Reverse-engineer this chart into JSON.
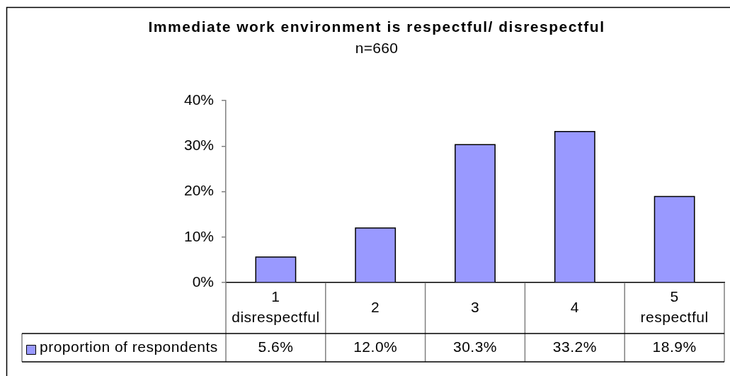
{
  "chart_data": {
    "type": "bar",
    "title": "Immediate work environment is respectful/ disrespectful",
    "subtitle": "n=660",
    "categories": [
      "1\ndisrespectful",
      "2",
      "3",
      "4",
      "5\nrespectful"
    ],
    "series": [
      {
        "name": "proportion of respondents",
        "color": "#9999ff",
        "values": [
          5.6,
          12.0,
          30.3,
          33.2,
          18.9
        ],
        "value_labels": [
          "5.6%",
          "12.0%",
          "30.3%",
          "33.2%",
          "18.9%"
        ]
      }
    ],
    "ylim": [
      0,
      40
    ],
    "yticks": [
      {
        "value": 0,
        "label": "0%"
      },
      {
        "value": 10,
        "label": "10%"
      },
      {
        "value": 20,
        "label": "20%"
      },
      {
        "value": 30,
        "label": "30%"
      },
      {
        "value": 40,
        "label": "40%"
      }
    ],
    "legend": "bottom left"
  }
}
